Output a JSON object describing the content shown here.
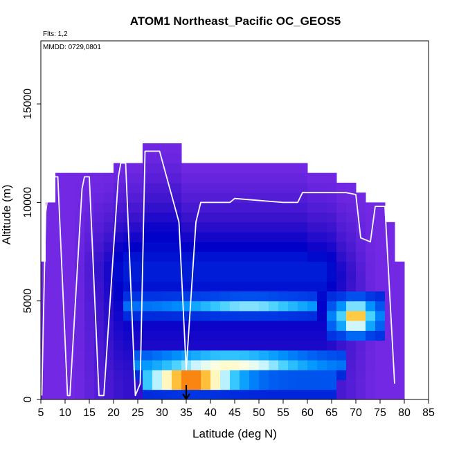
{
  "chart_data": {
    "type": "heatmap",
    "title": "ATOM1 Northeast_Pacific OC_GEOS5",
    "annotations": [
      "Flts: 1,2",
      "MMDD: 0729,0801"
    ],
    "xlabel": "Latitude (deg N)",
    "ylabel": "Altitude (m)",
    "xlim": [
      5,
      85
    ],
    "ylim": [
      0,
      18200
    ],
    "xticks": [
      5,
      10,
      15,
      20,
      25,
      30,
      35,
      40,
      45,
      50,
      55,
      60,
      65,
      70,
      75,
      80,
      85
    ],
    "yticks": [
      0,
      5000,
      10000,
      15000
    ],
    "grid": false,
    "legend": "none",
    "marker_latitude": 35,
    "colors": {
      "low": "#7a2be6",
      "mid": "#0000cc",
      "high": "#b00000",
      "flight_track": "#ffffff"
    },
    "column_tops": [
      [
        4,
        7000
      ],
      [
        6,
        10000
      ],
      [
        8,
        11500
      ],
      [
        14,
        11500
      ],
      [
        20,
        12000
      ],
      [
        26,
        13000
      ],
      [
        33,
        12000
      ],
      [
        48,
        12000
      ],
      [
        59,
        11500
      ],
      [
        66,
        11000
      ],
      [
        70,
        10500
      ],
      [
        72,
        10000
      ],
      [
        75,
        9000
      ],
      [
        77,
        7000
      ],
      [
        79,
        6000
      ],
      [
        80,
        0
      ]
    ],
    "concentration_features": [
      {
        "lat_range": [
          26,
          66
        ],
        "alt_center": 1000,
        "alt_halfwidth": 500,
        "peak_lat": 36,
        "lat_width": 9,
        "amplitude": 1.0
      },
      {
        "lat_range": [
          24,
          68
        ],
        "alt_center": 1900,
        "alt_halfwidth": 500,
        "peak_lat": 44,
        "lat_width": 14,
        "amplitude": 0.55
      },
      {
        "lat_range": [
          23,
          62
        ],
        "alt_center": 4800,
        "alt_halfwidth": 450,
        "peak_lat": 48,
        "lat_width": 12,
        "amplitude": 0.3
      },
      {
        "lat_range": [
          65,
          76
        ],
        "alt_center": 4200,
        "alt_halfwidth": 900,
        "peak_lat": 70,
        "lat_width": 3,
        "amplitude": 0.65
      }
    ],
    "flight_track": [
      [
        5.2,
        200
      ],
      [
        6,
        9500
      ],
      [
        7,
        11300
      ],
      [
        8.5,
        11300
      ],
      [
        10.5,
        200
      ],
      [
        11,
        200
      ],
      [
        13.5,
        10700
      ],
      [
        14,
        11300
      ],
      [
        15,
        11300
      ],
      [
        17,
        200
      ],
      [
        18,
        200
      ],
      [
        21,
        11300
      ],
      [
        21.5,
        12000
      ],
      [
        22.5,
        12000
      ],
      [
        24.5,
        200
      ],
      [
        25.5,
        800
      ],
      [
        26.5,
        12600
      ],
      [
        29.5,
        12600
      ],
      [
        33.5,
        9000
      ],
      [
        35,
        1500
      ],
      [
        37,
        9000
      ],
      [
        38,
        10000
      ],
      [
        44,
        10000
      ],
      [
        45,
        10200
      ],
      [
        55,
        10000
      ],
      [
        58,
        10000
      ],
      [
        59,
        10500
      ],
      [
        68,
        10500
      ],
      [
        70,
        10400
      ],
      [
        71,
        8200
      ],
      [
        73,
        8000
      ],
      [
        74,
        9800
      ],
      [
        76,
        9800
      ],
      [
        78,
        800
      ]
    ]
  }
}
